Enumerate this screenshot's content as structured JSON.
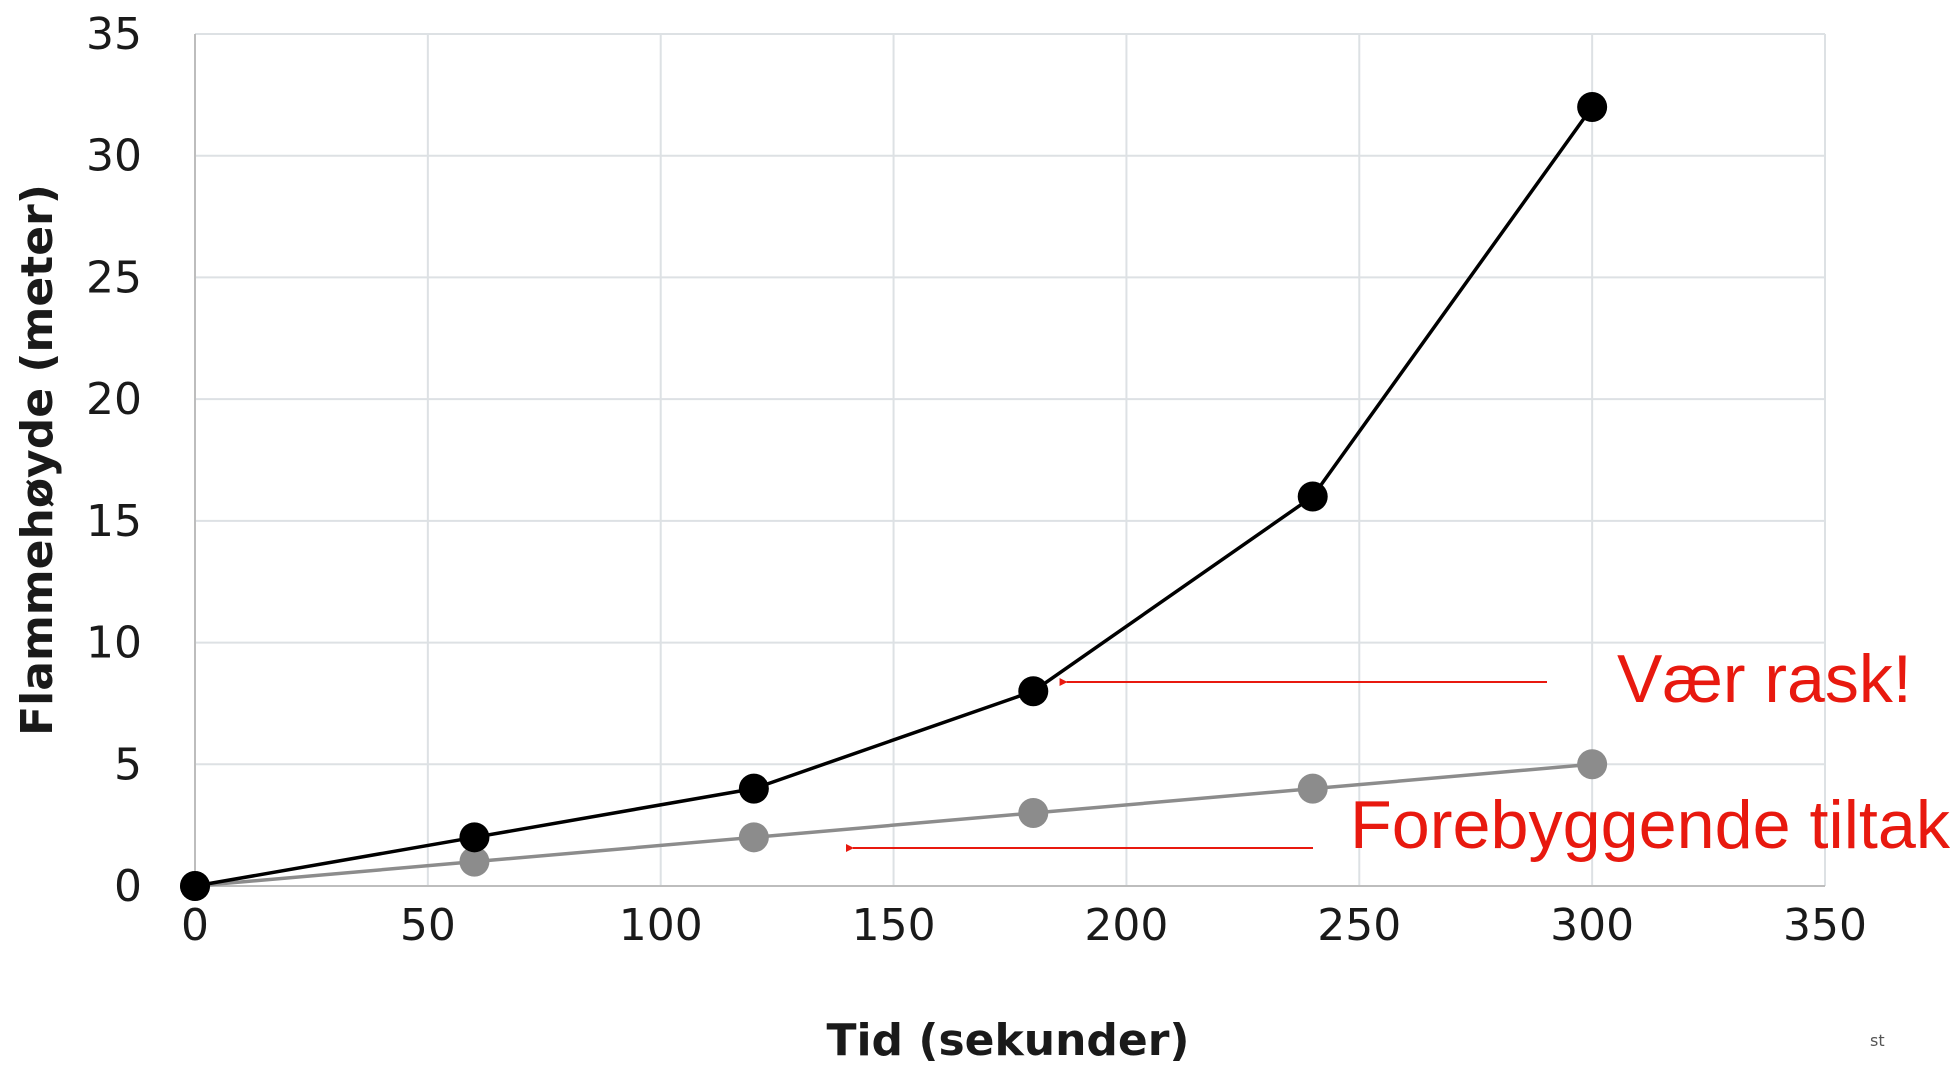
{
  "chart_data": {
    "type": "line",
    "title": "",
    "xlabel": "Tid (sekunder)",
    "ylabel": "Flammehøyde (meter)",
    "xlim": [
      0,
      350
    ],
    "ylim": [
      0,
      35
    ],
    "x_ticks": [
      0,
      50,
      100,
      150,
      200,
      250,
      300,
      350
    ],
    "y_ticks": [
      0,
      5,
      10,
      15,
      20,
      25,
      30,
      35
    ],
    "grid": true,
    "legend": "none",
    "series": [
      {
        "color": "#000000",
        "points": [
          [
            0,
            0
          ],
          [
            60,
            2
          ],
          [
            120,
            4
          ],
          [
            180,
            8
          ],
          [
            240,
            16
          ],
          [
            300,
            32
          ]
        ]
      },
      {
        "color": "#8c8c8c",
        "points": [
          [
            0,
            0
          ],
          [
            60,
            1
          ],
          [
            120,
            2
          ],
          [
            180,
            3
          ],
          [
            240,
            4
          ],
          [
            300,
            5
          ]
        ]
      }
    ],
    "annotations": [
      {
        "text": "Vær rask!",
        "color": "#e8190f",
        "arrow_to": [
          185,
          8.2
        ]
      },
      {
        "text": "Forebyggende  tiltak",
        "color": "#e8190f",
        "arrow_to": [
          140,
          1.6
        ]
      }
    ]
  },
  "corner_mark": "st"
}
